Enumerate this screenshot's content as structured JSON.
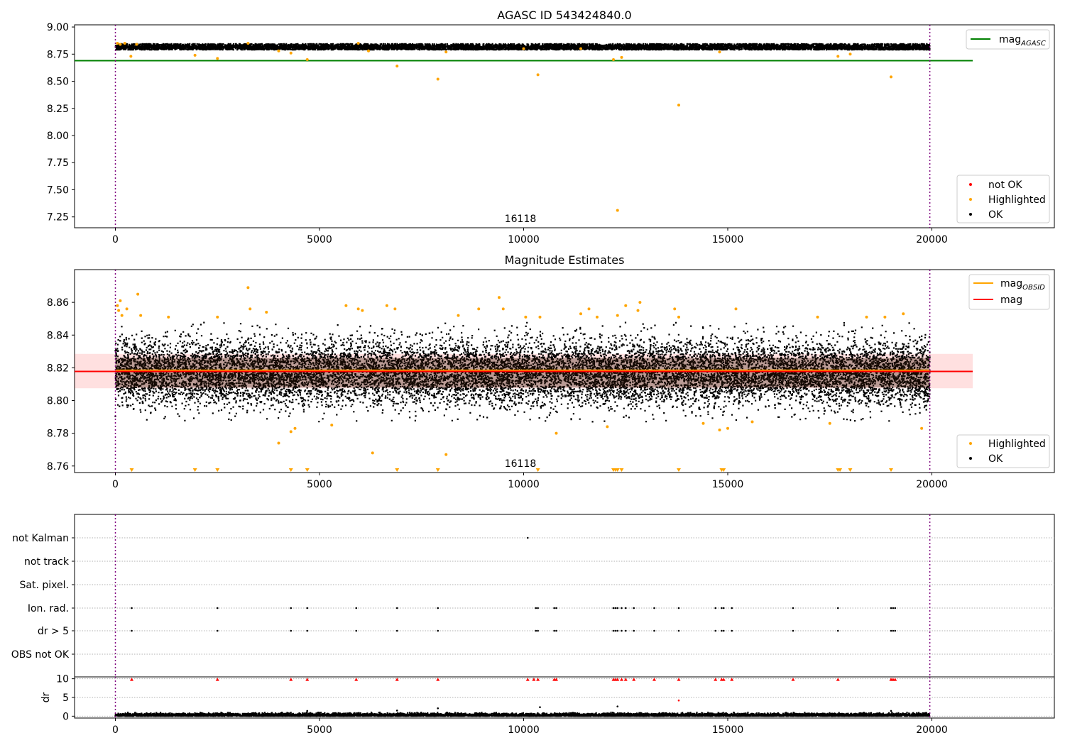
{
  "chart_data": [
    {
      "type": "scatter",
      "title": "AGASC ID 543424840.0",
      "xlim": [
        -1000,
        23000
      ],
      "ylim": [
        7.15,
        9.02
      ],
      "x_ticks": [
        0,
        5000,
        10000,
        15000,
        20000
      ],
      "y_ticks": [
        7.25,
        7.5,
        7.75,
        8.0,
        8.25,
        8.5,
        8.75,
        9.0
      ],
      "y_tick_labels": [
        "7.25",
        "7.50",
        "7.75",
        "8.00",
        "8.25",
        "8.50",
        "8.75",
        "9.00"
      ],
      "annotation": "16118",
      "annotation_x": 10000,
      "vertical_lines_x": [
        0,
        19950
      ],
      "reference_lines": [
        {
          "name": "mag_AGASC",
          "legend_main": "mag",
          "legend_sub": "AGASC",
          "y": 8.69,
          "x_range": [
            -1000,
            21000
          ],
          "color": "#008000"
        }
      ],
      "ok_band": {
        "center": 8.815,
        "spread": 0.016,
        "x_range": [
          0,
          19950
        ]
      },
      "series": [
        {
          "name": "not OK",
          "color": "#ff0000",
          "points": []
        },
        {
          "name": "Highlighted",
          "color": "#ffa500",
          "points": [
            [
              50,
              8.85
            ],
            [
              120,
              8.84
            ],
            [
              230,
              8.85
            ],
            [
              380,
              8.73
            ],
            [
              520,
              8.84
            ],
            [
              1950,
              8.74
            ],
            [
              2500,
              8.71
            ],
            [
              3250,
              8.85
            ],
            [
              4000,
              8.78
            ],
            [
              4300,
              8.76
            ],
            [
              4700,
              8.7
            ],
            [
              5950,
              8.85
            ],
            [
              6200,
              8.78
            ],
            [
              6900,
              8.64
            ],
            [
              7900,
              8.52
            ],
            [
              8100,
              8.77
            ],
            [
              10000,
              8.8
            ],
            [
              10350,
              8.56
            ],
            [
              11400,
              8.8
            ],
            [
              12200,
              8.7
            ],
            [
              12300,
              7.31
            ],
            [
              12400,
              8.72
            ],
            [
              13800,
              8.28
            ],
            [
              14800,
              8.77
            ],
            [
              17700,
              8.73
            ],
            [
              18000,
              8.75
            ],
            [
              19000,
              8.54
            ]
          ]
        },
        {
          "name": "OK",
          "color": "#000000",
          "points": []
        }
      ],
      "legends": [
        {
          "position": "top-right",
          "entries": [
            {
              "label_main": "mag",
              "label_sub": "AGASC",
              "kind": "line",
              "color": "#008000"
            }
          ]
        },
        {
          "position": "bottom-right",
          "entries": [
            {
              "label": "not OK",
              "kind": "dot",
              "color": "#ff0000"
            },
            {
              "label": "Highlighted",
              "kind": "dot",
              "color": "#ffa500"
            },
            {
              "label": "OK",
              "kind": "dot",
              "color": "#000000"
            }
          ]
        }
      ]
    },
    {
      "type": "scatter",
      "title": "Magnitude Estimates",
      "xlim": [
        -1000,
        23000
      ],
      "ylim": [
        8.756,
        8.88
      ],
      "x_ticks": [
        0,
        5000,
        10000,
        15000,
        20000
      ],
      "y_ticks": [
        8.76,
        8.78,
        8.8,
        8.82,
        8.84,
        8.86
      ],
      "y_tick_labels": [
        "8.76",
        "8.78",
        "8.80",
        "8.82",
        "8.84",
        "8.86"
      ],
      "annotation": "16118",
      "annotation_x": 10000,
      "vertical_lines_x": [
        0,
        19950
      ],
      "reference_lines": [
        {
          "name": "mag_OBSID",
          "legend_main": "mag",
          "legend_sub": "OBSID",
          "y": 8.8185,
          "x_range": [
            0,
            19950
          ],
          "color": "#ffa500"
        },
        {
          "name": "mag",
          "legend_main": "mag",
          "legend_sub": "",
          "y": 8.8178,
          "x_range": [
            -1000,
            21000
          ],
          "color": "#ff0000"
        }
      ],
      "shaded_band": {
        "y_range": [
          8.8075,
          8.8285
        ],
        "x_range": [
          -1000,
          21000
        ],
        "color": "#ff0000",
        "opacity": 0.12
      },
      "ok_band": {
        "center": 8.817,
        "spread": 0.01,
        "x_range": [
          0,
          19950
        ]
      },
      "series": [
        {
          "name": "Highlighted",
          "color": "#ffa500",
          "points": [
            [
              50,
              8.858
            ],
            [
              80,
              8.855
            ],
            [
              120,
              8.861
            ],
            [
              160,
              8.852
            ],
            [
              280,
              8.856
            ],
            [
              550,
              8.865
            ],
            [
              620,
              8.852
            ],
            [
              1300,
              8.851
            ],
            [
              2500,
              8.851
            ],
            [
              3250,
              8.869
            ],
            [
              3300,
              8.856
            ],
            [
              3700,
              8.854
            ],
            [
              4000,
              8.774
            ],
            [
              4300,
              8.781
            ],
            [
              4400,
              8.783
            ],
            [
              5300,
              8.785
            ],
            [
              5650,
              8.858
            ],
            [
              5950,
              8.856
            ],
            [
              6050,
              8.855
            ],
            [
              6300,
              8.768
            ],
            [
              6650,
              8.858
            ],
            [
              6850,
              8.856
            ],
            [
              8100,
              8.767
            ],
            [
              8400,
              8.852
            ],
            [
              8900,
              8.856
            ],
            [
              9400,
              8.863
            ],
            [
              9500,
              8.856
            ],
            [
              10050,
              8.851
            ],
            [
              10400,
              8.851
            ],
            [
              10800,
              8.78
            ],
            [
              11400,
              8.853
            ],
            [
              11600,
              8.856
            ],
            [
              11800,
              8.851
            ],
            [
              12050,
              8.784
            ],
            [
              12300,
              8.852
            ],
            [
              12500,
              8.858
            ],
            [
              12800,
              8.855
            ],
            [
              12850,
              8.86
            ],
            [
              13700,
              8.856
            ],
            [
              13800,
              8.851
            ],
            [
              14400,
              8.786
            ],
            [
              14800,
              8.782
            ],
            [
              15000,
              8.783
            ],
            [
              15200,
              8.856
            ],
            [
              15600,
              8.787
            ],
            [
              17200,
              8.851
            ],
            [
              17500,
              8.786
            ],
            [
              18400,
              8.851
            ],
            [
              18850,
              8.851
            ],
            [
              19300,
              8.853
            ],
            [
              19750,
              8.783
            ]
          ]
        },
        {
          "name": "OK",
          "color": "#000000",
          "points": []
        }
      ],
      "clipped_markers_x": [
        400,
        1950,
        2500,
        4300,
        4700,
        6900,
        7900,
        10350,
        12200,
        12250,
        12300,
        12400,
        13800,
        14850,
        14900,
        17700,
        17750,
        18000,
        19000
      ],
      "legends": [
        {
          "position": "top-right",
          "entries": [
            {
              "label_main": "mag",
              "label_sub": "OBSID",
              "kind": "line",
              "color": "#ffa500"
            },
            {
              "label_main": "mag",
              "label_sub": "",
              "kind": "line",
              "color": "#ff0000"
            }
          ]
        },
        {
          "position": "bottom-right",
          "entries": [
            {
              "label": "Highlighted",
              "kind": "dot",
              "color": "#ffa500"
            },
            {
              "label": "OK",
              "kind": "dot",
              "color": "#000000"
            }
          ]
        }
      ]
    },
    {
      "type": "scatter",
      "title": "",
      "xlim": [
        -1000,
        23000
      ],
      "categories": [
        "not Kalman",
        "not track",
        "Sat. pixel.",
        "Ion. rad.",
        "dr > 5",
        "OBS not OK"
      ],
      "vertical_lines_x": [
        0,
        19950
      ],
      "flags": [
        {
          "category": "not Kalman",
          "x": [
            10100
          ]
        },
        {
          "category": "not track",
          "x": []
        },
        {
          "category": "Sat. pixel.",
          "x": []
        },
        {
          "category": "Ion. rad.",
          "x": [
            400,
            2500,
            4300,
            4700,
            5900,
            6900,
            7900,
            10300,
            10350,
            10750,
            10800,
            12200,
            12250,
            12300,
            12400,
            12500,
            12700,
            13200,
            13800,
            14700,
            14850,
            14900,
            15100,
            16600,
            17700,
            19000,
            19050,
            19100
          ]
        },
        {
          "category": "dr > 5",
          "x": [
            400,
            2500,
            4300,
            4700,
            5900,
            6900,
            7900,
            10300,
            10350,
            10750,
            10800,
            12200,
            12250,
            12300,
            12400,
            12500,
            12700,
            13200,
            13800,
            14700,
            14850,
            14900,
            15100,
            16600,
            17700,
            19000,
            19050,
            19100
          ]
        },
        {
          "category": "OBS not OK",
          "x": []
        }
      ]
    },
    {
      "type": "scatter",
      "title": "",
      "ylabel": "dr",
      "xlim": [
        -1000,
        23000
      ],
      "ylim": [
        -0.5,
        10.5
      ],
      "x_ticks": [
        0,
        5000,
        10000,
        15000,
        20000
      ],
      "y_ticks": [
        0,
        5,
        10
      ],
      "y_tick_labels": [
        "0",
        "5",
        "10"
      ],
      "vertical_lines_x": [
        0,
        19950
      ],
      "baseline": {
        "center": 0.3,
        "spread": 0.25,
        "x_range": [
          0,
          19950
        ]
      },
      "series": [
        {
          "name": "dr",
          "color": "#000000",
          "points": [
            [
              4700,
              1.4
            ],
            [
              6900,
              1.5
            ],
            [
              7900,
              2.1
            ],
            [
              10400,
              2.4
            ],
            [
              12300,
              2.6
            ],
            [
              19000,
              1.4
            ]
          ]
        },
        {
          "name": "dr > 5",
          "color": "#ff0000",
          "points": [
            [
              13800,
              4.2
            ]
          ]
        }
      ],
      "clipped_markers_x": [
        400,
        2500,
        4300,
        4700,
        5900,
        6900,
        7900,
        10100,
        10250,
        10350,
        10750,
        10800,
        12200,
        12250,
        12300,
        12400,
        12500,
        12700,
        13200,
        13800,
        14700,
        14850,
        14900,
        15100,
        16600,
        17700,
        19000,
        19050,
        19100
      ]
    }
  ]
}
